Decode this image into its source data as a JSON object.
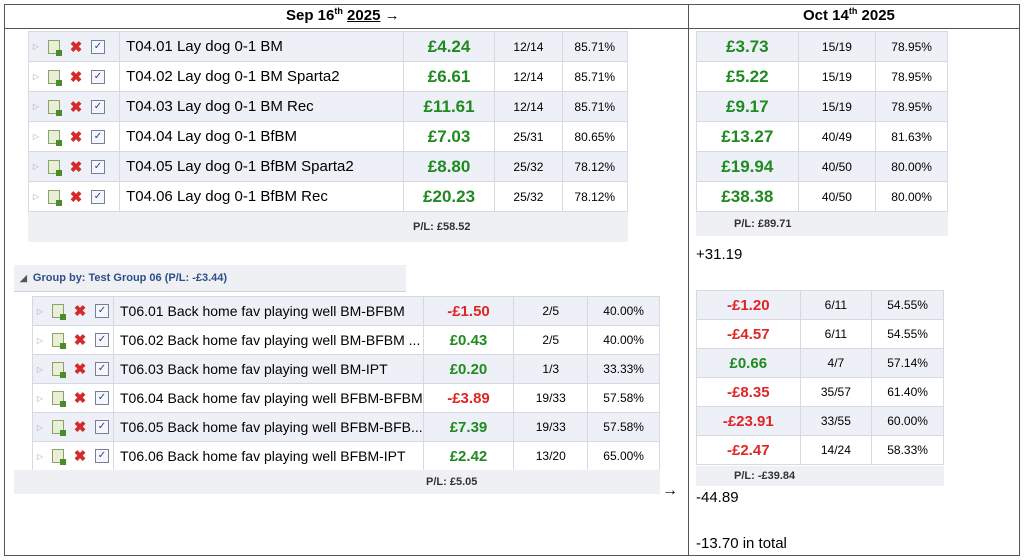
{
  "headers": {
    "left_prefix": "Sep 16",
    "left_sup": "th",
    "left_year": "2025",
    "left_arrow": "→",
    "right_prefix": "Oct 14",
    "right_sup": "th",
    "right_year": "2025"
  },
  "group1": {
    "rows": [
      {
        "name": "T04.01 Lay dog 0-1 BM",
        "pl": "£4.24",
        "ratio": "12/14",
        "pct": "85.71%"
      },
      {
        "name": "T04.02 Lay dog 0-1 BM Sparta2",
        "pl": "£6.61",
        "ratio": "12/14",
        "pct": "85.71%"
      },
      {
        "name": "T04.03 Lay dog 0-1 BM Rec",
        "pl": "£11.61",
        "ratio": "12/14",
        "pct": "85.71%"
      },
      {
        "name": "T04.04 Lay dog 0-1 BfBM",
        "pl": "£7.03",
        "ratio": "25/31",
        "pct": "80.65%"
      },
      {
        "name": "T04.05 Lay dog 0-1 BfBM Sparta2",
        "pl": "£8.80",
        "ratio": "25/32",
        "pct": "78.12%"
      },
      {
        "name": "T04.06 Lay dog 0-1 BfBM Rec",
        "pl": "£20.23",
        "ratio": "25/32",
        "pct": "78.12%"
      }
    ],
    "total": "P/L: £58.52",
    "right_rows": [
      {
        "pl": "£3.73",
        "ratio": "15/19",
        "pct": "78.95%"
      },
      {
        "pl": "£5.22",
        "ratio": "15/19",
        "pct": "78.95%"
      },
      {
        "pl": "£9.17",
        "ratio": "15/19",
        "pct": "78.95%"
      },
      {
        "pl": "£13.27",
        "ratio": "40/49",
        "pct": "81.63%"
      },
      {
        "pl": "£19.94",
        "ratio": "40/50",
        "pct": "80.00%"
      },
      {
        "pl": "£38.38",
        "ratio": "40/50",
        "pct": "80.00%"
      }
    ],
    "right_total": "P/L: £89.71",
    "diff": "+31.19"
  },
  "group2": {
    "header": "Group by: Test Group 06 (P/L: -£3.44)",
    "rows": [
      {
        "name": "T06.01 Back home fav playing well BM-BFBM",
        "pl": "-£1.50",
        "ratio": "2/5",
        "pct": "40.00%",
        "sign": "neg"
      },
      {
        "name": "T06.02 Back home fav playing well BM-BFBM ...",
        "pl": "£0.43",
        "ratio": "2/5",
        "pct": "40.00%",
        "sign": "pos"
      },
      {
        "name": "T06.03 Back home fav playing well BM-IPT",
        "pl": "£0.20",
        "ratio": "1/3",
        "pct": "33.33%",
        "sign": "pos"
      },
      {
        "name": "T06.04 Back home fav playing well BFBM-BFBM",
        "pl": "-£3.89",
        "ratio": "19/33",
        "pct": "57.58%",
        "sign": "neg"
      },
      {
        "name": "T06.05 Back home fav playing well BFBM-BFB...",
        "pl": "£7.39",
        "ratio": "19/33",
        "pct": "57.58%",
        "sign": "pos"
      },
      {
        "name": "T06.06 Back home fav playing well BFBM-IPT",
        "pl": "£2.42",
        "ratio": "13/20",
        "pct": "65.00%",
        "sign": "pos"
      }
    ],
    "total": "P/L: £5.05",
    "right_rows": [
      {
        "pl": "-£1.20",
        "ratio": "6/11",
        "pct": "54.55%",
        "sign": "neg"
      },
      {
        "pl": "-£4.57",
        "ratio": "6/11",
        "pct": "54.55%",
        "sign": "neg"
      },
      {
        "pl": "£0.66",
        "ratio": "4/7",
        "pct": "57.14%",
        "sign": "pos"
      },
      {
        "pl": "-£8.35",
        "ratio": "35/57",
        "pct": "61.40%",
        "sign": "neg"
      },
      {
        "pl": "-£23.91",
        "ratio": "33/55",
        "pct": "60.00%",
        "sign": "neg"
      },
      {
        "pl": "-£2.47",
        "ratio": "14/24",
        "pct": "58.33%",
        "sign": "neg"
      }
    ],
    "right_total": "P/L: -£39.84",
    "diff": "-44.89",
    "arrow": "→"
  },
  "grand_total": "-13.70 in total",
  "colors": {
    "positive": "#1f8a1f",
    "negative": "#e02525"
  },
  "icons": [
    "expand-arrow-icon",
    "document-icon",
    "delete-icon",
    "checkbox-icon"
  ]
}
